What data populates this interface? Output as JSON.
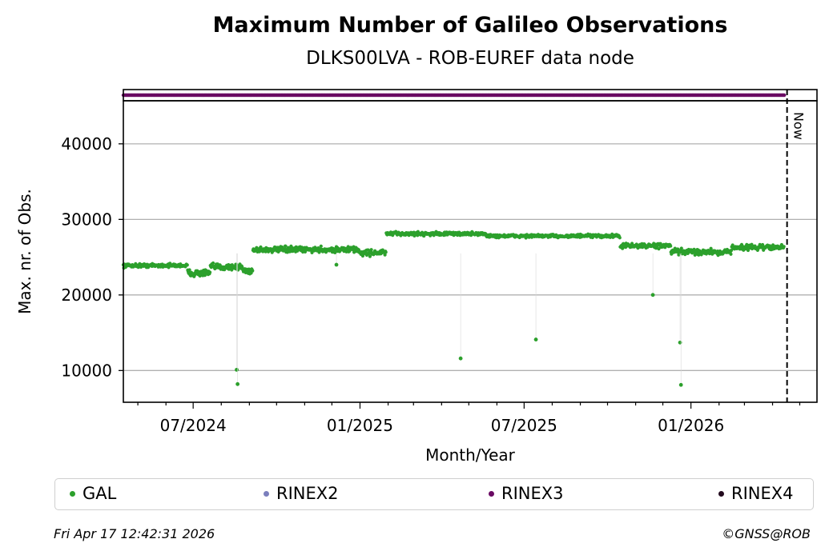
{
  "title": "Maximum Number of Galileo Observations",
  "subtitle": "DLKS00LVA - ROB-EUREF data node",
  "footer_left": "Fri Apr 17 12:42:31 2026",
  "footer_right": "©GNSS@ROB",
  "colors": {
    "GAL": "#2ca02c",
    "RINEX2": "#7b7fbd",
    "RINEX3": "#6a0a63",
    "RINEX4": "#220a1e",
    "grid": "#b0b0b0"
  },
  "chart_data": {
    "type": "scatter",
    "title": "Maximum Number of Galileo Observations",
    "subtitle": "DLKS00LVA - ROB-EUREF data node",
    "xlabel": "Month/Year",
    "ylabel": "Max. nr. of Obs.",
    "x_ticks": [
      "07/2024",
      "01/2025",
      "07/2025",
      "01/2026"
    ],
    "x_range": [
      "2024-04-15",
      "2026-05-20"
    ],
    "ylim": [
      5800,
      45700
    ],
    "y_ticks": [
      10000,
      20000,
      30000,
      40000
    ],
    "grid": "horizontal",
    "now_marker": {
      "date": "2026-04-17",
      "label": "Now"
    },
    "rinex3_strip": {
      "series": "RINEX3",
      "start": "2024-04-15",
      "end": "2026-04-14"
    },
    "legend_position": "bottom",
    "legend": [
      "GAL",
      "RINEX2",
      "RINEX3",
      "RINEX4"
    ],
    "gal_segments": [
      {
        "start": "2024-04-15",
        "end": "2024-06-25",
        "level": 23900,
        "spread": 350
      },
      {
        "start": "2024-06-25",
        "end": "2024-07-20",
        "level": 22900,
        "spread": 650
      },
      {
        "start": "2024-07-20",
        "end": "2024-08-25",
        "level": 23700,
        "spread": 600
      },
      {
        "start": "2024-08-25",
        "end": "2024-09-05",
        "level": 23200,
        "spread": 700
      },
      {
        "start": "2024-09-05",
        "end": "2024-12-31",
        "level": 26000,
        "spread": 550
      },
      {
        "start": "2024-12-31",
        "end": "2025-01-30",
        "level": 25600,
        "spread": 600
      },
      {
        "start": "2025-01-30",
        "end": "2025-05-20",
        "level": 28100,
        "spread": 350
      },
      {
        "start": "2025-05-20",
        "end": "2025-07-10",
        "level": 27800,
        "spread": 320
      },
      {
        "start": "2025-07-10",
        "end": "2025-10-15",
        "level": 27800,
        "spread": 320
      },
      {
        "start": "2025-10-15",
        "end": "2025-12-10",
        "level": 26500,
        "spread": 450
      },
      {
        "start": "2025-12-10",
        "end": "2026-02-15",
        "level": 25700,
        "spread": 600
      },
      {
        "start": "2026-02-15",
        "end": "2026-04-14",
        "level": 26300,
        "spread": 500
      }
    ],
    "gal_outliers": [
      {
        "date": "2024-08-18",
        "value": 10100
      },
      {
        "date": "2024-08-19",
        "value": 8200
      },
      {
        "date": "2024-12-06",
        "value": 24000
      },
      {
        "date": "2025-04-22",
        "value": 11600
      },
      {
        "date": "2025-07-14",
        "value": 14100
      },
      {
        "date": "2025-11-20",
        "value": 20000
      },
      {
        "date": "2025-12-20",
        "value": 13700
      },
      {
        "date": "2025-12-21",
        "value": 8100
      }
    ]
  }
}
